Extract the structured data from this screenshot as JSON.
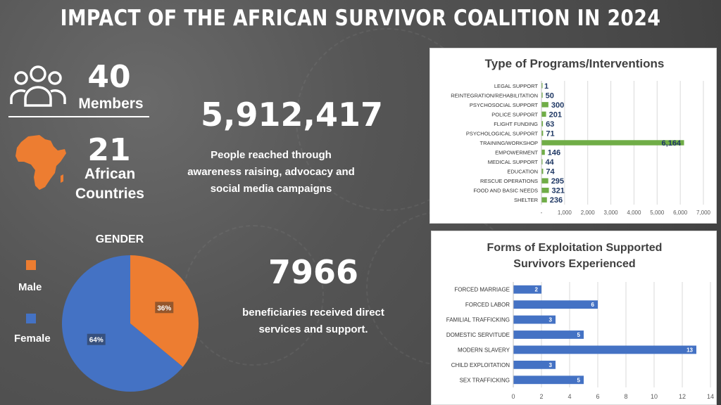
{
  "header": {
    "title": "IMPACT OF THE AFRICAN SURVIVOR COALITION IN 2024"
  },
  "stats": {
    "members": {
      "value": "40",
      "label": "Members",
      "icon": "users-group-icon"
    },
    "countries": {
      "value": "21",
      "label_line1": "African",
      "label_line2": "Countries",
      "icon": "africa-map-icon"
    },
    "reach": {
      "value": "5,912,417",
      "line1": "People reached through",
      "line2": "awareness raising, advocacy and",
      "line3": "social media campaigns"
    },
    "beneficiaries": {
      "value": "7966",
      "line1": "beneficiaries received direct",
      "line2": "services and support."
    }
  },
  "colors": {
    "orange": "#ED7D31",
    "blue": "#4472C4",
    "green": "#70AD47",
    "navy": "#1F3864"
  },
  "chart_data": [
    {
      "type": "pie",
      "title": "GENDER",
      "categories": [
        "Male",
        "Female"
      ],
      "values": [
        36,
        64
      ],
      "data_labels": [
        "36%",
        "64%"
      ],
      "colors": [
        "#ED7D31",
        "#4472C4"
      ],
      "legend": "left"
    },
    {
      "type": "bar",
      "orientation": "horizontal",
      "title": "Type of Programs/Interventions",
      "categories": [
        "LEGAL SUPPORT",
        "REINTEGRATION/REHABILITATION",
        "PSYCHOSOCIAL SUPPORT",
        "POLICE SUPPORT",
        "FLIGHT FUNDING",
        "PSYCHOLOGICAL SUPPORT",
        "TRAINING/WORKSHOP",
        "EMPOWERMENT",
        "MEDICAL SUPPORT",
        "EDUCATION",
        "RESCUE OPERATIONS",
        "FOOD AND BASIC NEEDS",
        "SHELTER"
      ],
      "values": [
        1,
        50,
        300,
        201,
        63,
        71,
        6164,
        146,
        44,
        74,
        295,
        321,
        236
      ],
      "data_labels": [
        "1",
        "50",
        "300",
        "201",
        "63",
        "71",
        "6,164",
        "146",
        "44",
        "74",
        "295",
        "321",
        "236"
      ],
      "xticks": [
        "-",
        "1,000",
        "2,000",
        "3,000",
        "4,000",
        "5,000",
        "6,000",
        "7,000"
      ],
      "xlim": [
        0,
        7000
      ],
      "grid": true,
      "color": "#70AD47"
    },
    {
      "type": "bar",
      "orientation": "horizontal",
      "title_line1": "Forms of Exploitation Supported",
      "title_line2": "Survivors Experienced",
      "categories": [
        "FORCED MARRIAGE",
        "FORCED LABOR",
        "FAMILIAL TRAFFICKING",
        "DOMESTIC SERVITUDE",
        "MODERN SLAVERY",
        "CHILD EXPLOITATION",
        "SEX TRAFFICKING"
      ],
      "values": [
        2,
        6,
        3,
        5,
        13,
        3,
        5
      ],
      "data_labels": [
        "2",
        "6",
        "3",
        "5",
        "13",
        "3",
        "5"
      ],
      "xticks": [
        "0",
        "2",
        "4",
        "6",
        "8",
        "10",
        "12",
        "14"
      ],
      "xlim": [
        0,
        14
      ],
      "grid": true,
      "color": "#4472C4"
    }
  ]
}
